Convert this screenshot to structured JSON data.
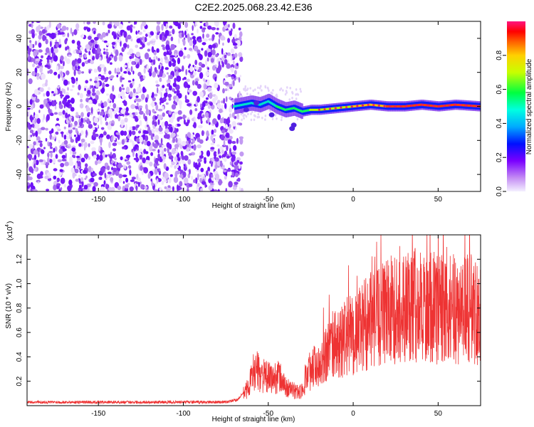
{
  "figure": {
    "title": "C2E2.2025.068.23.42.E36"
  },
  "chart_data": [
    {
      "type": "heatmap",
      "xlabel": "Height of straight line (km)",
      "ylabel": "Frequency (Hz)",
      "xlim": [
        -192,
        75
      ],
      "ylim": [
        -50,
        50
      ],
      "xticks": [
        -150,
        -100,
        -50,
        0,
        50
      ],
      "yticks": [
        -40,
        -20,
        0,
        20,
        40
      ],
      "noise_region_x": [
        -192,
        -68
      ],
      "signal_trace": {
        "x": [
          -70,
          -60,
          -55,
          -50,
          -45,
          -40,
          -35,
          -30,
          -25,
          -20,
          -10,
          0,
          10,
          20,
          30,
          40,
          50,
          60,
          75
        ],
        "y": [
          0,
          2,
          1,
          3,
          0,
          -2,
          -1,
          -3,
          -2,
          -2,
          -1,
          0,
          1,
          0,
          0,
          1,
          0,
          1,
          0
        ]
      },
      "colorbar": {
        "label": "Normalized spectral amplitude",
        "range": [
          0.0,
          1.0
        ],
        "ticks": [
          "0.0",
          "0.2",
          "0.4",
          "0.6",
          "0.8"
        ]
      }
    },
    {
      "type": "line",
      "xlabel": "Height of straight line (km)",
      "ylabel": "SNR (10 * v/v)",
      "y_scale_note": "(x10",
      "y_scale_exp": "4",
      "xlim": [
        -192,
        75
      ],
      "ylim": [
        0,
        14000
      ],
      "xticks": [
        -150,
        -100,
        -50,
        0,
        50
      ],
      "yticks": [
        "0.2",
        "0.4",
        "0.6",
        "0.8",
        "1.0",
        "1.2"
      ],
      "color": "#ee3333",
      "series": [
        {
          "x": [
            -192,
            -150,
            -100,
            -75,
            -68,
            -62,
            -58,
            -55,
            -52,
            -50,
            -47,
            -44,
            -42,
            -40,
            -38,
            -36,
            -34,
            -32,
            -30,
            -28,
            -26,
            -24,
            -22,
            -20,
            -18,
            -15,
            -12,
            -10,
            -8,
            -5,
            -2,
            0,
            3,
            5,
            8,
            10,
            12,
            15,
            18,
            20,
            22,
            25,
            27,
            30,
            32,
            35,
            38,
            40,
            43,
            45,
            48,
            50,
            55,
            60,
            65,
            70,
            75
          ],
          "y": [
            300,
            300,
            300,
            300,
            500,
            1500,
            3200,
            2800,
            2500,
            2400,
            2300,
            2600,
            2200,
            1600,
            1500,
            1400,
            1200,
            1300,
            1200,
            2400,
            3000,
            3300,
            3500,
            3900,
            4200,
            4800,
            5200,
            5400,
            5200,
            5800,
            6200,
            6000,
            6400,
            6800,
            7200,
            7200,
            7400,
            7600,
            8000,
            8200,
            8300,
            8400,
            8200,
            8500,
            8600,
            8700,
            8600,
            8500,
            8700,
            8600,
            8500,
            8400,
            8400,
            8300,
            8300,
            8400,
            8400
          ]
        }
      ]
    }
  ]
}
